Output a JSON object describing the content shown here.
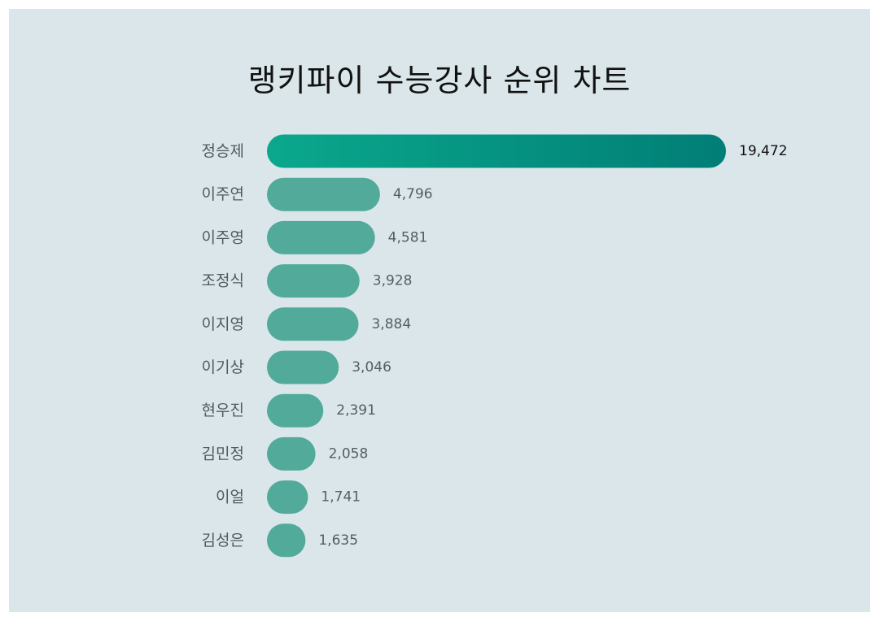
{
  "title": "랭키파이 수능강사 순위 차트",
  "colors": {
    "background": "#dbe6eb",
    "bar": "#52ab9a",
    "top_bar_start": "#0aa88c",
    "top_bar_end": "#017e76"
  },
  "chart_data": {
    "type": "bar",
    "orientation": "horizontal",
    "title": "랭키파이 수능강사 순위 차트",
    "categories": [
      "정승제",
      "이주연",
      "이주영",
      "조정식",
      "이지영",
      "이기상",
      "현우진",
      "김민정",
      "이얼",
      "김성은"
    ],
    "values": [
      19472,
      4796,
      4581,
      3928,
      3884,
      3046,
      2391,
      2058,
      1741,
      1635
    ],
    "value_labels": [
      "19,472",
      "4,796",
      "4,581",
      "3,928",
      "3,884",
      "3,046",
      "2,391",
      "2,058",
      "1,741",
      "1,635"
    ],
    "xlabel": "",
    "ylabel": "",
    "grid": false,
    "legend": "none"
  }
}
